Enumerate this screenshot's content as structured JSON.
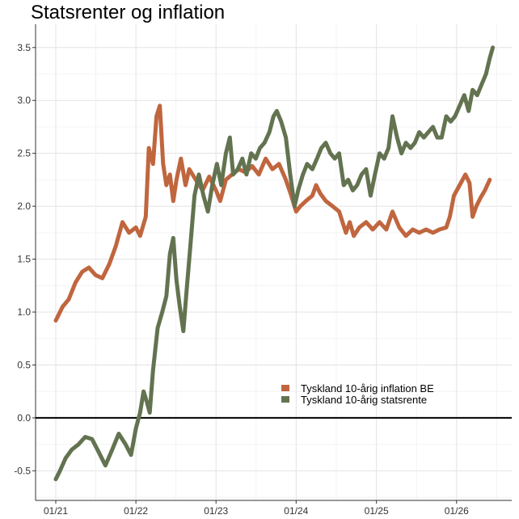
{
  "chart_data": {
    "type": "line",
    "title": "Statsrenter og inflation",
    "xlabel": "",
    "ylabel": "",
    "ylim": [
      -0.78,
      3.72
    ],
    "y_ticks": [
      -0.5,
      0.0,
      0.5,
      1.0,
      1.5,
      2.0,
      2.5,
      3.0,
      3.5
    ],
    "y_tick_labels": [
      "-0.5",
      "0.0",
      "0.5",
      "1.0",
      "1.5",
      "2.0",
      "2.5",
      "3.0",
      "3.5"
    ],
    "x_range": [
      "2021-01-01",
      "2026-08-31"
    ],
    "x_ticks": [
      "2021-01-01",
      "2022-01-01",
      "2023-01-01",
      "2024-01-01",
      "2025-01-01",
      "2026-01-01"
    ],
    "x_tick_labels": [
      "01/21",
      "01/22",
      "01/23",
      "01/24",
      "01/25",
      "01/26"
    ],
    "grid": true,
    "zero_line": true,
    "legend_position": "bottom-right",
    "series": [
      {
        "name": "Tyskland 10-årig inflation BE",
        "color": "#c0663f",
        "points": [
          [
            "2021-01-01",
            0.92
          ],
          [
            "2021-02-01",
            1.05
          ],
          [
            "2021-03-01",
            1.12
          ],
          [
            "2021-04-01",
            1.28
          ],
          [
            "2021-05-01",
            1.38
          ],
          [
            "2021-06-01",
            1.42
          ],
          [
            "2021-07-01",
            1.35
          ],
          [
            "2021-08-01",
            1.32
          ],
          [
            "2021-09-01",
            1.45
          ],
          [
            "2021-10-01",
            1.62
          ],
          [
            "2021-11-01",
            1.85
          ],
          [
            "2021-12-01",
            1.75
          ],
          [
            "2022-01-01",
            1.8
          ],
          [
            "2022-01-20",
            1.72
          ],
          [
            "2022-02-15",
            1.9
          ],
          [
            "2022-03-01",
            2.55
          ],
          [
            "2022-03-20",
            2.4
          ],
          [
            "2022-04-05",
            2.85
          ],
          [
            "2022-04-20",
            2.95
          ],
          [
            "2022-05-05",
            2.4
          ],
          [
            "2022-05-20",
            2.2
          ],
          [
            "2022-06-05",
            2.3
          ],
          [
            "2022-06-20",
            2.05
          ],
          [
            "2022-07-05",
            2.25
          ],
          [
            "2022-07-25",
            2.45
          ],
          [
            "2022-08-15",
            2.2
          ],
          [
            "2022-09-01",
            2.35
          ],
          [
            "2022-10-01",
            2.25
          ],
          [
            "2022-11-01",
            2.15
          ],
          [
            "2022-12-01",
            2.28
          ],
          [
            "2023-01-01",
            2.15
          ],
          [
            "2023-01-20",
            2.05
          ],
          [
            "2023-02-15",
            2.25
          ],
          [
            "2023-03-15",
            2.3
          ],
          [
            "2023-04-15",
            2.35
          ],
          [
            "2023-05-15",
            2.32
          ],
          [
            "2023-06-15",
            2.38
          ],
          [
            "2023-07-15",
            2.3
          ],
          [
            "2023-08-15",
            2.45
          ],
          [
            "2023-09-15",
            2.35
          ],
          [
            "2023-10-15",
            2.4
          ],
          [
            "2023-11-15",
            2.25
          ],
          [
            "2023-12-10",
            2.1
          ],
          [
            "2024-01-01",
            1.95
          ],
          [
            "2024-01-20",
            2.0
          ],
          [
            "2024-02-15",
            2.05
          ],
          [
            "2024-03-15",
            2.1
          ],
          [
            "2024-04-01",
            2.2
          ],
          [
            "2024-04-20",
            2.12
          ],
          [
            "2024-05-15",
            2.05
          ],
          [
            "2024-06-15",
            2.0
          ],
          [
            "2024-07-15",
            1.95
          ],
          [
            "2024-08-15",
            1.75
          ],
          [
            "2024-09-01",
            1.85
          ],
          [
            "2024-09-20",
            1.72
          ],
          [
            "2024-10-15",
            1.8
          ],
          [
            "2024-11-15",
            1.85
          ],
          [
            "2024-12-15",
            1.78
          ],
          [
            "2025-01-15",
            1.85
          ],
          [
            "2025-02-15",
            1.78
          ],
          [
            "2025-03-15",
            1.95
          ],
          [
            "2025-04-15",
            1.8
          ],
          [
            "2025-05-15",
            1.72
          ],
          [
            "2025-06-15",
            1.78
          ],
          [
            "2025-07-15",
            1.75
          ],
          [
            "2025-08-15",
            1.78
          ],
          [
            "2025-09-15",
            1.75
          ],
          [
            "2025-10-15",
            1.78
          ],
          [
            "2025-11-15",
            1.8
          ],
          [
            "2025-12-01",
            1.9
          ],
          [
            "2025-12-20",
            2.1
          ],
          [
            "2026-01-15",
            2.2
          ],
          [
            "2026-02-10",
            2.3
          ],
          [
            "2026-03-01",
            2.22
          ],
          [
            "2026-03-15",
            1.9
          ],
          [
            "2026-04-01",
            2.0
          ],
          [
            "2026-04-20",
            2.08
          ],
          [
            "2026-05-10",
            2.15
          ],
          [
            "2026-06-01",
            2.25
          ]
        ]
      },
      {
        "name": "Tyskland 10-årig statsrente",
        "color": "#637350",
        "points": [
          [
            "2021-01-01",
            -0.58
          ],
          [
            "2021-01-20",
            -0.5
          ],
          [
            "2021-02-15",
            -0.38
          ],
          [
            "2021-03-15",
            -0.3
          ],
          [
            "2021-04-15",
            -0.25
          ],
          [
            "2021-05-15",
            -0.18
          ],
          [
            "2021-06-15",
            -0.2
          ],
          [
            "2021-07-15",
            -0.32
          ],
          [
            "2021-08-15",
            -0.45
          ],
          [
            "2021-09-15",
            -0.3
          ],
          [
            "2021-10-15",
            -0.15
          ],
          [
            "2021-11-15",
            -0.25
          ],
          [
            "2021-12-10",
            -0.35
          ],
          [
            "2022-01-01",
            -0.1
          ],
          [
            "2022-01-20",
            0.05
          ],
          [
            "2022-02-05",
            0.25
          ],
          [
            "2022-02-20",
            0.15
          ],
          [
            "2022-03-05",
            0.05
          ],
          [
            "2022-03-20",
            0.45
          ],
          [
            "2022-04-10",
            0.85
          ],
          [
            "2022-05-01",
            1.0
          ],
          [
            "2022-05-20",
            1.15
          ],
          [
            "2022-06-05",
            1.55
          ],
          [
            "2022-06-20",
            1.7
          ],
          [
            "2022-07-05",
            1.3
          ],
          [
            "2022-07-20",
            1.05
          ],
          [
            "2022-08-05",
            0.82
          ],
          [
            "2022-08-20",
            1.2
          ],
          [
            "2022-09-05",
            1.6
          ],
          [
            "2022-09-25",
            2.1
          ],
          [
            "2022-10-15",
            2.3
          ],
          [
            "2022-11-05",
            2.1
          ],
          [
            "2022-11-25",
            1.95
          ],
          [
            "2022-12-15",
            2.2
          ],
          [
            "2023-01-05",
            2.4
          ],
          [
            "2023-01-25",
            2.2
          ],
          [
            "2023-02-15",
            2.5
          ],
          [
            "2023-03-05",
            2.65
          ],
          [
            "2023-03-20",
            2.3
          ],
          [
            "2023-04-10",
            2.35
          ],
          [
            "2023-05-01",
            2.45
          ],
          [
            "2023-05-20",
            2.3
          ],
          [
            "2023-06-10",
            2.5
          ],
          [
            "2023-07-01",
            2.45
          ],
          [
            "2023-07-20",
            2.55
          ],
          [
            "2023-08-10",
            2.6
          ],
          [
            "2023-09-01",
            2.7
          ],
          [
            "2023-09-20",
            2.85
          ],
          [
            "2023-10-05",
            2.9
          ],
          [
            "2023-10-25",
            2.8
          ],
          [
            "2023-11-15",
            2.65
          ],
          [
            "2023-12-05",
            2.3
          ],
          [
            "2023-12-25",
            2.0
          ],
          [
            "2024-01-10",
            2.15
          ],
          [
            "2024-02-01",
            2.3
          ],
          [
            "2024-02-20",
            2.4
          ],
          [
            "2024-03-15",
            2.35
          ],
          [
            "2024-04-05",
            2.45
          ],
          [
            "2024-04-25",
            2.55
          ],
          [
            "2024-05-15",
            2.6
          ],
          [
            "2024-06-05",
            2.5
          ],
          [
            "2024-06-25",
            2.45
          ],
          [
            "2024-07-15",
            2.5
          ],
          [
            "2024-08-05",
            2.2
          ],
          [
            "2024-08-25",
            2.25
          ],
          [
            "2024-09-15",
            2.15
          ],
          [
            "2024-10-05",
            2.2
          ],
          [
            "2024-10-25",
            2.3
          ],
          [
            "2024-11-15",
            2.35
          ],
          [
            "2024-12-05",
            2.1
          ],
          [
            "2024-12-25",
            2.3
          ],
          [
            "2025-01-15",
            2.5
          ],
          [
            "2025-02-05",
            2.45
          ],
          [
            "2025-02-25",
            2.55
          ],
          [
            "2025-03-15",
            2.85
          ],
          [
            "2025-04-05",
            2.65
          ],
          [
            "2025-04-25",
            2.5
          ],
          [
            "2025-05-15",
            2.6
          ],
          [
            "2025-06-05",
            2.55
          ],
          [
            "2025-06-25",
            2.6
          ],
          [
            "2025-07-15",
            2.7
          ],
          [
            "2025-08-05",
            2.65
          ],
          [
            "2025-08-25",
            2.7
          ],
          [
            "2025-09-15",
            2.75
          ],
          [
            "2025-10-05",
            2.65
          ],
          [
            "2025-10-25",
            2.65
          ],
          [
            "2025-11-15",
            2.85
          ],
          [
            "2025-12-05",
            2.8
          ],
          [
            "2025-12-25",
            2.85
          ],
          [
            "2026-01-15",
            2.95
          ],
          [
            "2026-02-05",
            3.05
          ],
          [
            "2026-02-25",
            2.9
          ],
          [
            "2026-03-15",
            3.1
          ],
          [
            "2026-04-05",
            3.05
          ],
          [
            "2026-04-25",
            3.15
          ],
          [
            "2026-05-15",
            3.25
          ],
          [
            "2026-06-01",
            3.4
          ],
          [
            "2026-06-15",
            3.5
          ]
        ]
      }
    ]
  }
}
